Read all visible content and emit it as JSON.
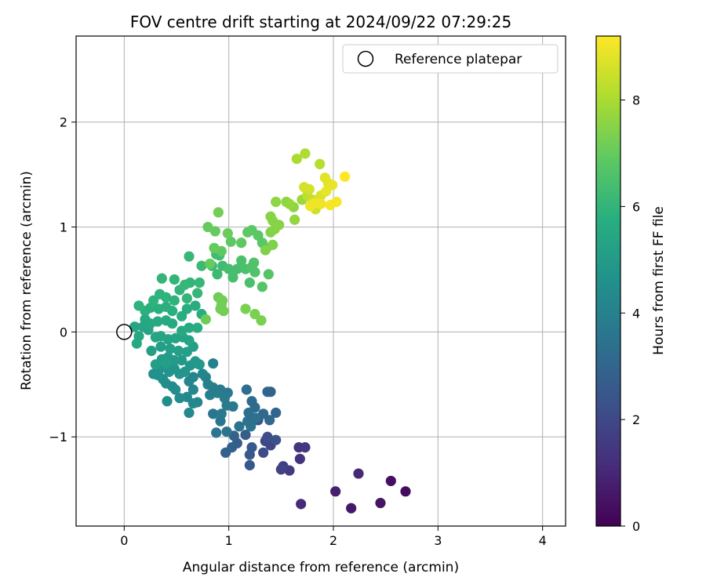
{
  "chart_data": {
    "type": "scatter",
    "title": "FOV centre drift starting at 2024/09/22 07:29:25",
    "xlabel": "Angular distance from reference (arcmin)",
    "ylabel": "Rotation from reference (arcmin)",
    "xlim": [
      -0.46,
      4.22
    ],
    "ylim": [
      -1.85,
      2.82
    ],
    "xticks": [
      0,
      1,
      2,
      3,
      4
    ],
    "xtick_labels": [
      "0",
      "1",
      "2",
      "3",
      "4"
    ],
    "yticks": [
      -1,
      0,
      1,
      2
    ],
    "ytick_labels": [
      "−1",
      "0",
      "1",
      "2"
    ],
    "grid": true,
    "legend": {
      "placement": "top-right",
      "entries": [
        "Reference platepar"
      ]
    },
    "reference_point": {
      "x": 0,
      "y": 0,
      "marker": "open-circle"
    },
    "colorbar": {
      "label": "Hours from first FF file",
      "colormap": "viridis",
      "min": 0,
      "max": 9.2,
      "ticks": [
        0,
        2,
        4,
        6,
        8
      ],
      "tick_labels": [
        "0",
        "2",
        "4",
        "6",
        "8"
      ]
    },
    "points": [
      [
        2.69,
        -1.52,
        0.3
      ],
      [
        2.55,
        -1.42,
        0.4
      ],
      [
        2.45,
        -1.63,
        0.5
      ],
      [
        2.17,
        -1.68,
        0.6
      ],
      [
        2.02,
        -1.52,
        0.8
      ],
      [
        2.24,
        -1.35,
        1.0
      ],
      [
        1.69,
        -1.64,
        1.1
      ],
      [
        1.68,
        -1.21,
        1.3
      ],
      [
        1.67,
        -1.1,
        1.4
      ],
      [
        1.73,
        -1.1,
        1.5
      ],
      [
        1.58,
        -1.32,
        1.6
      ],
      [
        1.52,
        -1.28,
        1.7
      ],
      [
        1.5,
        -1.31,
        1.8
      ],
      [
        1.4,
        -1.08,
        1.9
      ],
      [
        1.35,
        -1.04,
        2.0
      ],
      [
        1.33,
        -1.15,
        2.1
      ],
      [
        1.37,
        -1.0,
        2.2
      ],
      [
        1.45,
        -1.03,
        2.3
      ],
      [
        1.28,
        -0.84,
        2.4
      ],
      [
        1.2,
        -1.27,
        2.5
      ],
      [
        1.22,
        -1.1,
        2.6
      ],
      [
        1.2,
        -1.17,
        2.6
      ],
      [
        1.16,
        -0.98,
        2.7
      ],
      [
        1.08,
        -1.06,
        2.7
      ],
      [
        1.03,
        -1.1,
        2.8
      ],
      [
        0.97,
        -1.15,
        2.8
      ],
      [
        1.05,
        -0.99,
        2.9
      ],
      [
        1.4,
        -0.57,
        2.9
      ],
      [
        1.37,
        -0.57,
        3.0
      ],
      [
        1.45,
        -0.77,
        3.0
      ],
      [
        1.39,
        -0.84,
        3.1
      ],
      [
        1.33,
        -0.78,
        3.1
      ],
      [
        1.25,
        -0.72,
        3.2
      ],
      [
        1.22,
        -0.66,
        3.2
      ],
      [
        1.17,
        -0.55,
        3.3
      ],
      [
        1.19,
        -0.77,
        3.3
      ],
      [
        1.26,
        -0.82,
        3.4
      ],
      [
        1.18,
        -0.85,
        3.4
      ],
      [
        1.21,
        -0.9,
        3.5
      ],
      [
        1.1,
        -0.9,
        3.5
      ],
      [
        0.98,
        -0.95,
        3.5
      ],
      [
        0.92,
        -0.85,
        3.6
      ],
      [
        0.88,
        -0.96,
        3.6
      ],
      [
        0.85,
        -0.78,
        3.6
      ],
      [
        0.93,
        -0.78,
        3.7
      ],
      [
        1.04,
        -0.71,
        3.7
      ],
      [
        0.99,
        -0.58,
        3.7
      ],
      [
        0.96,
        -0.63,
        3.8
      ],
      [
        0.98,
        -0.7,
        3.8
      ],
      [
        0.92,
        -0.55,
        3.8
      ],
      [
        0.89,
        -0.58,
        3.9
      ],
      [
        0.85,
        -0.53,
        3.9
      ],
      [
        0.82,
        -0.6,
        3.9
      ],
      [
        0.8,
        -0.5,
        4.0
      ],
      [
        0.78,
        -0.43,
        4.0
      ],
      [
        0.85,
        -0.3,
        4.0
      ],
      [
        0.75,
        -0.4,
        4.1
      ],
      [
        0.7,
        -0.3,
        4.1
      ],
      [
        0.66,
        -0.43,
        4.1
      ],
      [
        0.62,
        -0.47,
        4.2
      ],
      [
        0.66,
        -0.55,
        4.2
      ],
      [
        0.7,
        -0.67,
        4.2
      ],
      [
        0.66,
        -0.68,
        4.3
      ],
      [
        0.6,
        -0.62,
        4.3
      ],
      [
        0.62,
        -0.77,
        4.3
      ],
      [
        0.53,
        -0.63,
        4.4
      ],
      [
        0.49,
        -0.55,
        4.4
      ],
      [
        0.46,
        -0.52,
        4.4
      ],
      [
        0.41,
        -0.66,
        4.5
      ],
      [
        0.4,
        -0.49,
        4.5
      ],
      [
        0.37,
        -0.45,
        4.5
      ],
      [
        0.32,
        -0.41,
        4.6
      ],
      [
        0.28,
        -0.4,
        4.6
      ],
      [
        0.33,
        -0.37,
        4.6
      ],
      [
        0.38,
        -0.33,
        4.7
      ],
      [
        0.43,
        -0.38,
        4.7
      ],
      [
        0.48,
        -0.35,
        4.7
      ],
      [
        0.53,
        -0.4,
        4.8
      ],
      [
        0.58,
        -0.38,
        4.8
      ],
      [
        0.63,
        -0.32,
        4.8
      ],
      [
        0.68,
        -0.28,
        4.9
      ],
      [
        0.72,
        -0.31,
        4.9
      ],
      [
        0.55,
        -0.27,
        4.9
      ],
      [
        0.48,
        -0.27,
        5.0
      ],
      [
        0.42,
        -0.24,
        5.0
      ],
      [
        0.36,
        -0.26,
        5.0
      ],
      [
        0.4,
        -0.3,
        5.1
      ],
      [
        0.3,
        -0.31,
        5.1
      ],
      [
        0.26,
        -0.18,
        5.1
      ],
      [
        0.35,
        -0.14,
        5.1
      ],
      [
        0.44,
        -0.16,
        5.2
      ],
      [
        0.52,
        -0.18,
        5.2
      ],
      [
        0.6,
        -0.19,
        5.2
      ],
      [
        0.66,
        -0.14,
        5.2
      ],
      [
        0.62,
        -0.08,
        5.3
      ],
      [
        0.56,
        -0.05,
        5.3
      ],
      [
        0.49,
        -0.06,
        5.3
      ],
      [
        0.42,
        -0.07,
        5.3
      ],
      [
        0.35,
        -0.04,
        5.4
      ],
      [
        0.3,
        -0.05,
        5.4
      ],
      [
        0.23,
        0.02,
        5.4
      ],
      [
        0.18,
        0.05,
        5.4
      ],
      [
        0.1,
        0.05,
        5.4
      ],
      [
        0.14,
        -0.04,
        5.5
      ],
      [
        0.12,
        -0.11,
        5.5
      ],
      [
        0.2,
        0.12,
        5.5
      ],
      [
        0.25,
        0.08,
        5.5
      ],
      [
        0.32,
        0.1,
        5.6
      ],
      [
        0.4,
        0.11,
        5.6
      ],
      [
        0.46,
        0.08,
        5.6
      ],
      [
        0.55,
        0.01,
        5.6
      ],
      [
        0.62,
        0.04,
        5.6
      ],
      [
        0.7,
        0.04,
        5.7
      ],
      [
        0.74,
        0.17,
        5.7
      ],
      [
        0.68,
        0.25,
        5.7
      ],
      [
        0.6,
        0.22,
        5.7
      ],
      [
        0.55,
        0.15,
        5.7
      ],
      [
        0.46,
        0.2,
        5.8
      ],
      [
        0.4,
        0.24,
        5.8
      ],
      [
        0.33,
        0.22,
        5.8
      ],
      [
        0.25,
        0.23,
        5.8
      ],
      [
        0.2,
        0.2,
        5.8
      ],
      [
        0.14,
        0.25,
        5.9
      ],
      [
        0.28,
        0.3,
        5.9
      ],
      [
        0.34,
        0.36,
        5.9
      ],
      [
        0.4,
        0.33,
        5.9
      ],
      [
        0.48,
        0.3,
        5.9
      ],
      [
        0.53,
        0.4,
        6.0
      ],
      [
        0.6,
        0.32,
        6.0
      ],
      [
        0.63,
        0.47,
        6.0
      ],
      [
        0.48,
        0.5,
        6.0
      ],
      [
        0.36,
        0.51,
        6.0
      ],
      [
        0.58,
        0.45,
        6.1
      ],
      [
        0.72,
        0.47,
        6.1
      ],
      [
        0.7,
        0.37,
        6.1
      ],
      [
        0.62,
        0.72,
        6.1
      ],
      [
        0.74,
        0.63,
        6.2
      ],
      [
        0.84,
        0.63,
        6.2
      ],
      [
        0.89,
        0.55,
        6.2
      ],
      [
        0.88,
        0.74,
        6.3
      ],
      [
        0.91,
        0.73,
        6.3
      ],
      [
        0.94,
        0.63,
        6.3
      ],
      [
        1.0,
        0.6,
        6.4
      ],
      [
        1.04,
        0.52,
        6.4
      ],
      [
        1.08,
        0.6,
        6.4
      ],
      [
        1.12,
        0.68,
        6.5
      ],
      [
        1.16,
        0.6,
        6.5
      ],
      [
        1.2,
        0.47,
        6.5
      ],
      [
        1.22,
        0.62,
        6.6
      ],
      [
        1.25,
        0.57,
        6.6
      ],
      [
        1.24,
        0.66,
        6.6
      ],
      [
        1.32,
        0.43,
        6.7
      ],
      [
        1.38,
        0.55,
        6.7
      ],
      [
        1.36,
        0.8,
        6.7
      ],
      [
        1.32,
        0.85,
        6.8
      ],
      [
        1.28,
        0.92,
        6.8
      ],
      [
        1.22,
        0.97,
        6.8
      ],
      [
        1.18,
        0.95,
        6.9
      ],
      [
        1.12,
        0.85,
        6.9
      ],
      [
        1.02,
        0.86,
        6.9
      ],
      [
        0.93,
        0.77,
        6.9
      ],
      [
        0.86,
        0.8,
        7.0
      ],
      [
        0.82,
        0.65,
        7.0
      ],
      [
        0.8,
        1.0,
        7.0
      ],
      [
        0.87,
        0.96,
        7.0
      ],
      [
        0.99,
        0.94,
        7.1
      ],
      [
        0.9,
        0.33,
        7.1
      ],
      [
        0.78,
        0.12,
        7.1
      ],
      [
        0.94,
        0.3,
        7.2
      ],
      [
        0.93,
        0.26,
        7.2
      ],
      [
        0.92,
        0.22,
        7.2
      ],
      [
        0.95,
        0.2,
        7.2
      ],
      [
        1.16,
        0.22,
        7.3
      ],
      [
        1.25,
        0.17,
        7.3
      ],
      [
        1.31,
        0.11,
        7.3
      ],
      [
        1.35,
        0.78,
        7.4
      ],
      [
        1.42,
        0.83,
        7.4
      ],
      [
        1.4,
        0.95,
        7.4
      ],
      [
        1.44,
        0.98,
        7.5
      ],
      [
        1.48,
        1.02,
        7.5
      ],
      [
        1.4,
        1.1,
        7.5
      ],
      [
        1.42,
        1.06,
        7.5
      ],
      [
        1.45,
        1.24,
        7.6
      ],
      [
        1.55,
        1.24,
        7.6
      ],
      [
        1.62,
        1.19,
        7.6
      ],
      [
        1.58,
        1.22,
        7.7
      ],
      [
        1.63,
        1.07,
        7.7
      ],
      [
        0.9,
        1.14,
        7.2
      ],
      [
        1.7,
        1.26,
        7.8
      ],
      [
        1.65,
        1.65,
        8.0
      ],
      [
        1.73,
        1.7,
        8.1
      ],
      [
        1.87,
        1.6,
        8.2
      ],
      [
        1.75,
        1.3,
        8.3
      ],
      [
        1.8,
        1.26,
        8.4
      ],
      [
        1.83,
        1.17,
        8.5
      ],
      [
        1.72,
        1.38,
        8.6
      ],
      [
        1.77,
        1.36,
        8.6
      ],
      [
        1.88,
        1.3,
        8.7
      ],
      [
        1.92,
        1.47,
        8.8
      ],
      [
        1.95,
        1.42,
        8.8
      ],
      [
        1.99,
        1.4,
        8.9
      ],
      [
        1.93,
        1.34,
        8.9
      ],
      [
        1.82,
        1.23,
        9.0
      ],
      [
        1.78,
        1.2,
        9.0
      ],
      [
        1.88,
        1.22,
        9.0
      ],
      [
        2.03,
        1.24,
        9.1
      ],
      [
        1.97,
        1.21,
        9.1
      ],
      [
        2.11,
        1.48,
        9.2
      ]
    ]
  }
}
